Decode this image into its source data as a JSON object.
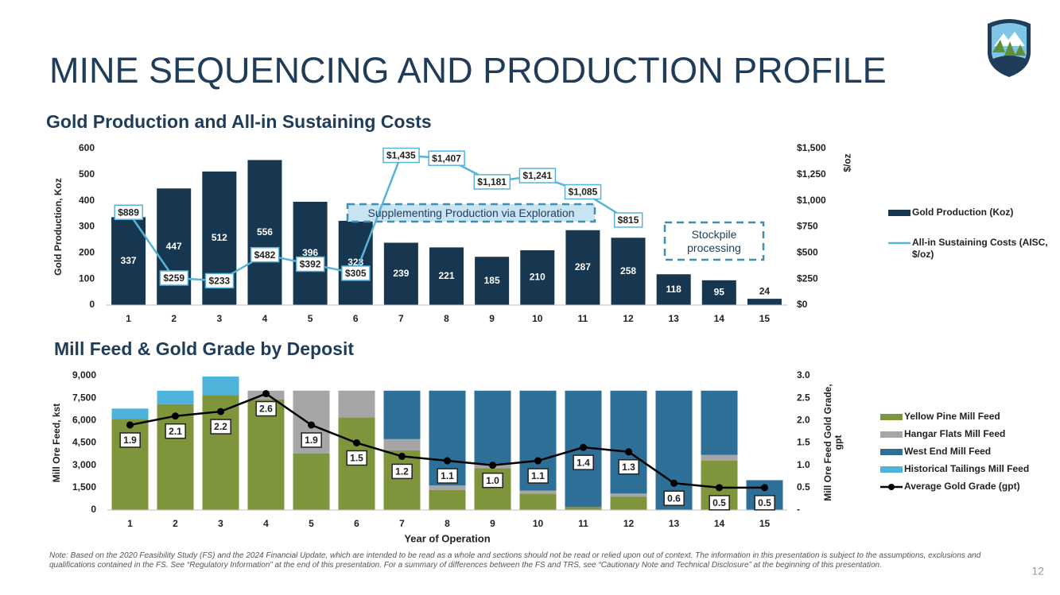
{
  "title": "MINE SEQUENCING AND PRODUCTION PROFILE",
  "chart_data": [
    {
      "type": "combo",
      "title": "Gold Production and All-in Sustaining Costs",
      "ylabel": "Gold Production, Koz",
      "y2label": "$/oz",
      "categories": [
        1,
        2,
        3,
        4,
        5,
        6,
        7,
        8,
        9,
        10,
        11,
        12,
        13,
        14,
        15
      ],
      "ylim": [
        0,
        600
      ],
      "yticks": [
        0,
        100,
        200,
        300,
        400,
        500,
        600
      ],
      "y2lim": [
        0,
        1500
      ],
      "y2ticks": [
        {
          "value": 0,
          "label": "$0"
        },
        {
          "value": 250,
          "label": "$250"
        },
        {
          "value": 500,
          "label": "$500"
        },
        {
          "value": 750,
          "label": "$750"
        },
        {
          "value": 1000,
          "label": "$1,000"
        },
        {
          "value": 1250,
          "label": "$1,250"
        },
        {
          "value": 1500,
          "label": "$1,500"
        }
      ],
      "series": [
        {
          "name": "Gold Production (Koz)",
          "type": "bar",
          "color": "#17364f",
          "labels": true,
          "values": [
            337,
            447,
            512,
            556,
            396,
            323,
            239,
            221,
            185,
            210,
            287,
            258,
            118,
            95,
            24
          ]
        },
        {
          "name": "All-in Sustaining Costs (AISC, $/oz)",
          "type": "line",
          "axis": "y2",
          "color": "#56b4d8",
          "labels": true,
          "values": [
            889,
            259,
            233,
            482,
            392,
            305,
            1435,
            1407,
            1181,
            1241,
            1085,
            815,
            null,
            null,
            null
          ],
          "value_labels": [
            "$889",
            "$259",
            "$233",
            "$482",
            "$392",
            "$305",
            "$1,435",
            "$1,407",
            "$1,181",
            "$1,241",
            "$1,085",
            "$815",
            null,
            null,
            null
          ]
        }
      ],
      "annotations": [
        "Supplementing Production via Exploration",
        "Stockpile processing"
      ]
    },
    {
      "type": "combo",
      "stacked": true,
      "title": "Mill Feed & Gold Grade by Deposit",
      "xlabel": "Year of Operation",
      "ylabel": "Mill Ore Feed, kst",
      "y2label": "Mill Ore Feed Gold Grade, gpt",
      "categories": [
        1,
        2,
        3,
        4,
        5,
        6,
        7,
        8,
        9,
        10,
        11,
        12,
        13,
        14,
        15
      ],
      "ylim": [
        0,
        9000
      ],
      "yticks": [
        0,
        {
          "value": 1500,
          "label": "1,500"
        },
        {
          "value": 3000,
          "label": "3,000"
        },
        {
          "value": 4500,
          "label": "4,500"
        },
        {
          "value": 6000,
          "label": "6,000"
        },
        {
          "value": 7500,
          "label": "7,500"
        },
        {
          "value": 9000,
          "label": "9,000"
        }
      ],
      "y2lim": [
        0,
        3
      ],
      "y2ticks": [
        {
          "value": 0,
          "label": "-"
        },
        0.5,
        {
          "value": 1,
          "label": "1.0"
        },
        1.5,
        {
          "value": 2,
          "label": "2.0"
        },
        2.5,
        {
          "value": 3,
          "label": "3.0"
        }
      ],
      "series": [
        {
          "name": "Yellow Pine Mill Feed",
          "type": "bar",
          "color": "#7f953b",
          "values": [
            6100,
            7100,
            7700,
            7400,
            3800,
            6200,
            4000,
            1350,
            2800,
            1100,
            200,
            900,
            0,
            3300,
            0
          ]
        },
        {
          "name": "Hangar Flats Mill Feed",
          "type": "bar",
          "color": "#a6a6a6",
          "values": [
            0,
            0,
            0,
            600,
            4200,
            1800,
            750,
            300,
            300,
            200,
            0,
            200,
            0,
            400,
            0
          ]
        },
        {
          "name": "West End Mill Feed",
          "type": "bar",
          "color": "#2d6f97",
          "values": [
            0,
            0,
            0,
            0,
            0,
            0,
            3250,
            6350,
            4900,
            6700,
            7800,
            6900,
            8000,
            4300,
            2000
          ]
        },
        {
          "name": "Historical Tailings Mill Feed",
          "type": "bar",
          "color": "#4eb3da",
          "values": [
            700,
            900,
            1250,
            0,
            0,
            0,
            0,
            0,
            0,
            0,
            0,
            0,
            0,
            0,
            0
          ]
        },
        {
          "name": "Average Gold Grade (gpt)",
          "type": "line",
          "axis": "y2",
          "color": "#000000",
          "marker": true,
          "labels": true,
          "values": [
            1.9,
            2.1,
            2.2,
            2.6,
            1.9,
            1.5,
            1.2,
            1.1,
            1.0,
            1.1,
            1.4,
            1.3,
            0.6,
            0.5,
            0.5
          ],
          "value_labels": [
            "1.9",
            "2.1",
            "2.2",
            "2.6",
            "1.9",
            "1.5",
            "1.2",
            "1.1",
            "1.0",
            "1.1",
            "1.4",
            "1.3",
            "0.6",
            "0.5",
            "0.5"
          ]
        }
      ]
    }
  ],
  "note": "Note: Based on the 2020 Feasibility Study (FS) and the 2024 Financial Update, which are intended to be read as a whole and sections should not be read or relied upon out of context. The information in this presentation is subject to the assumptions, exclusions and qualifications contained in the FS. See “Regulatory Information” at the end of this presentation. For a summary of differences between the FS and TRS, see “Cautionary Note and Technical Disclosure” at the beginning of this presentation.",
  "page_number": 12
}
